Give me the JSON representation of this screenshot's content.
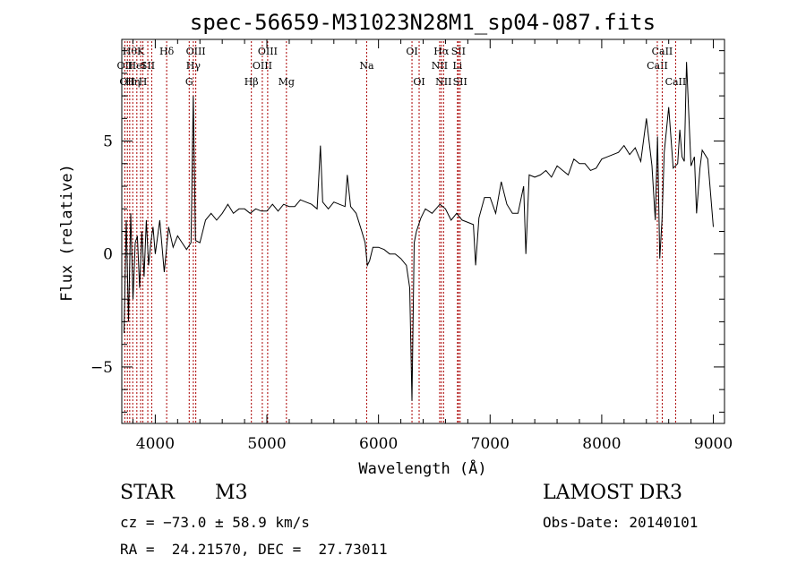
{
  "chart_data": {
    "type": "line",
    "title": "spec-56659-M31023N28M1_sp04-087.fits",
    "xlabel": "Wavelength (Å)",
    "ylabel": "Flux (relative)",
    "xlim": [
      3700,
      9100
    ],
    "ylim": [
      -7.5,
      9.5
    ],
    "xticks": [
      4000,
      5000,
      6000,
      7000,
      8000,
      9000
    ],
    "yticks": [
      -5,
      0,
      5
    ],
    "grid": false,
    "line_color": "#000000",
    "marker_color": "#aa0000",
    "series": [
      {
        "x": [
          3720,
          3740,
          3760,
          3780,
          3800,
          3820,
          3840,
          3860,
          3880,
          3900,
          3920,
          3940,
          3960,
          3980,
          4000,
          4040,
          4080,
          4120,
          4160,
          4200,
          4240,
          4280,
          4320,
          4340,
          4360,
          4400,
          4450,
          4500,
          4550,
          4600,
          4650,
          4700,
          4750,
          4800,
          4850,
          4900,
          4950,
          5000,
          5050,
          5100,
          5150,
          5200,
          5250,
          5300,
          5350,
          5400,
          5450,
          5480,
          5500,
          5550,
          5600,
          5650,
          5700,
          5720,
          5750,
          5800,
          5850,
          5880,
          5900,
          5920,
          5950,
          6000,
          6050,
          6100,
          6150,
          6200,
          6250,
          6280,
          6300,
          6320,
          6340,
          6380,
          6420,
          6480,
          6550,
          6600,
          6650,
          6700,
          6750,
          6800,
          6850,
          6870,
          6900,
          6950,
          7000,
          7050,
          7100,
          7150,
          7200,
          7250,
          7300,
          7320,
          7350,
          7400,
          7450,
          7500,
          7550,
          7600,
          7650,
          7700,
          7750,
          7800,
          7850,
          7900,
          7950,
          8000,
          8050,
          8100,
          8150,
          8200,
          8250,
          8300,
          8350,
          8400,
          8450,
          8480,
          8500,
          8520,
          8540,
          8560,
          8600,
          8640,
          8680,
          8700,
          8720,
          8740,
          8760,
          8800,
          8830,
          8850,
          8880,
          8900,
          8950,
          9000
        ],
        "y": [
          -3.5,
          1.5,
          -3.0,
          1.8,
          -2.0,
          0.5,
          0.8,
          -1.5,
          1.0,
          -1.0,
          1.5,
          -0.5,
          0.5,
          1.2,
          0.0,
          1.5,
          -0.8,
          1.2,
          0.3,
          0.8,
          0.5,
          0.2,
          0.5,
          7.0,
          0.6,
          0.5,
          1.5,
          1.8,
          1.5,
          1.8,
          2.2,
          1.8,
          2.0,
          2.0,
          1.8,
          2.0,
          1.9,
          1.9,
          2.2,
          1.9,
          2.2,
          2.1,
          2.1,
          2.4,
          2.3,
          2.2,
          2.0,
          4.8,
          2.3,
          2.0,
          2.3,
          2.2,
          2.1,
          3.5,
          2.1,
          1.8,
          1.0,
          0.5,
          -0.5,
          -0.3,
          0.3,
          0.3,
          0.2,
          0.0,
          0.0,
          -0.2,
          -0.5,
          -1.5,
          -6.5,
          0.5,
          1.0,
          1.6,
          2.0,
          1.8,
          2.2,
          2.0,
          1.5,
          1.8,
          1.5,
          1.4,
          1.3,
          -0.5,
          1.6,
          2.5,
          2.5,
          1.8,
          3.2,
          2.2,
          1.8,
          1.8,
          3.0,
          0.0,
          3.5,
          3.4,
          3.5,
          3.7,
          3.4,
          3.9,
          3.7,
          3.5,
          4.2,
          4.0,
          4.0,
          3.7,
          3.8,
          4.2,
          4.3,
          4.4,
          4.5,
          4.8,
          4.4,
          4.7,
          4.1,
          6.0,
          3.9,
          1.5,
          5.2,
          -0.2,
          1.5,
          4.5,
          6.5,
          3.8,
          4.0,
          5.5,
          4.3,
          4.1,
          8.5,
          3.9,
          4.3,
          1.8,
          3.8,
          4.6,
          4.2,
          1.2
        ]
      }
    ],
    "line_markers": [
      {
        "x": 3727,
        "label": "OII",
        "row": 2
      },
      {
        "x": 3750,
        "label": "OII",
        "row": 3
      },
      {
        "x": 3771,
        "label": "Hθ",
        "row": 1
      },
      {
        "x": 3798,
        "label": "Hη",
        "row": 3
      },
      {
        "x": 3835,
        "label": "HeI",
        "row": 2
      },
      {
        "x": 3869,
        "label": "K",
        "row": 1
      },
      {
        "x": 3889,
        "label": "H",
        "row": 3
      },
      {
        "x": 3933,
        "label": "SII",
        "row": 2
      },
      {
        "x": 3968,
        "label": "",
        "row": 0
      },
      {
        "x": 4102,
        "label": "Hδ",
        "row": 1
      },
      {
        "x": 4304,
        "label": "G",
        "row": 3
      },
      {
        "x": 4341,
        "label": "Hγ",
        "row": 2
      },
      {
        "x": 4363,
        "label": "OIII",
        "row": 1
      },
      {
        "x": 4861,
        "label": "Hβ",
        "row": 3
      },
      {
        "x": 4959,
        "label": "OIII",
        "row": 2
      },
      {
        "x": 5007,
        "label": "OIII",
        "row": 1
      },
      {
        "x": 5175,
        "label": "Mg",
        "row": 3
      },
      {
        "x": 5894,
        "label": "Na",
        "row": 2
      },
      {
        "x": 6300,
        "label": "OI",
        "row": 1
      },
      {
        "x": 6364,
        "label": "OI",
        "row": 3
      },
      {
        "x": 6548,
        "label": "NII",
        "row": 2
      },
      {
        "x": 6563,
        "label": "Hα",
        "row": 1
      },
      {
        "x": 6583,
        "label": "NII",
        "row": 3
      },
      {
        "x": 6708,
        "label": "Li",
        "row": 2
      },
      {
        "x": 6716,
        "label": "SII",
        "row": 1
      },
      {
        "x": 6731,
        "label": "SII",
        "row": 3
      },
      {
        "x": 8498,
        "label": "CaII",
        "row": 2
      },
      {
        "x": 8542,
        "label": "CaII",
        "row": 1
      },
      {
        "x": 8662,
        "label": "CaII",
        "row": 3
      }
    ]
  },
  "info": {
    "object_class": "STAR",
    "subclass": "M3",
    "survey": "LAMOST DR3",
    "redshift": "cz = −73.0 ± 58.9 km/s",
    "obs_date": "Obs-Date: 20140101",
    "coords": "RA =  24.21570, DEC =  27.73011"
  }
}
